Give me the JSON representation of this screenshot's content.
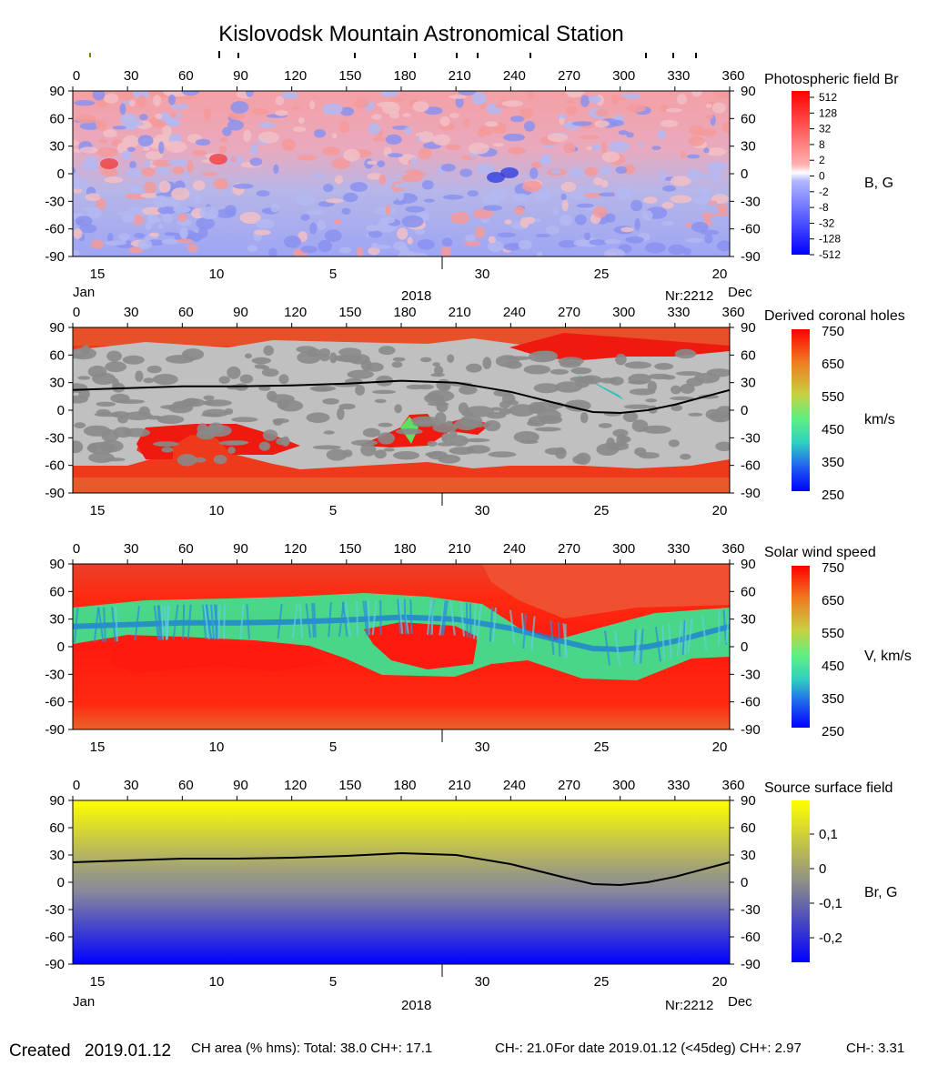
{
  "title": "Kislovodsk Mountain Astronomical Station",
  "colors": {
    "negative": "#0b1ee8",
    "positive": "#ee1b1b",
    "ch_gray_light": "#c0c0c0",
    "ch_gray_dark": "#8a8a8a",
    "neutral_line": "#000000",
    "ss_top": "#ffff00",
    "ss_mid": "#8f8f86",
    "ss_bottom": "#0000ff"
  },
  "top_longitude_ticks": [
    "0",
    "30",
    "60",
    "90",
    "120",
    "150",
    "180",
    "210",
    "240",
    "270",
    "300",
    "330",
    "360"
  ],
  "latitude_ticks": [
    "90",
    "60",
    "30",
    "0",
    "-30",
    "-60",
    "-90"
  ],
  "date_ticks": [
    "15",
    "10",
    "5",
    "30",
    "25",
    "20"
  ],
  "date_labels": {
    "left_month": "Jan",
    "right_month": "Dec",
    "year": "2018",
    "rotation": "Nr:2212"
  },
  "chart_data": [
    {
      "type": "heatmap",
      "title": "Photospheric field Br",
      "colorbar_label": "B, G",
      "colorbar_ticks": [
        "512",
        "128",
        "32",
        "8",
        "2",
        "0",
        "-2",
        "-8",
        "-32",
        "-128",
        "-512"
      ],
      "xlim": [
        0,
        360
      ],
      "ylim": [
        -90,
        90
      ],
      "x_ticks": [
        0,
        30,
        60,
        90,
        120,
        150,
        180,
        210,
        240,
        270,
        300,
        330,
        360
      ],
      "y_ticks": [
        90,
        60,
        30,
        0,
        -30,
        -60,
        -90
      ]
    },
    {
      "type": "heatmap",
      "title": "Derived coronal holes",
      "colorbar_label": "km/s",
      "colorbar_ticks": [
        "750",
        "650",
        "550",
        "450",
        "350",
        "250"
      ],
      "xlim": [
        0,
        360
      ],
      "ylim": [
        -90,
        90
      ],
      "neutral_line": {
        "x": [
          0,
          30,
          60,
          90,
          120,
          150,
          180,
          210,
          240,
          270,
          285,
          300,
          315,
          330,
          345,
          360
        ],
        "y": [
          22,
          24,
          26,
          26,
          27,
          29,
          32,
          30,
          20,
          5,
          -2,
          -3,
          0,
          6,
          14,
          22
        ]
      }
    },
    {
      "type": "heatmap",
      "title": "Solar wind speed",
      "colorbar_label": "V, km/s",
      "colorbar_ticks": [
        "750",
        "650",
        "550",
        "450",
        "350",
        "250"
      ],
      "xlim": [
        0,
        360
      ],
      "ylim": [
        -90,
        90
      ]
    },
    {
      "type": "heatmap",
      "title": "Source surface field",
      "colorbar_label": "Br, G",
      "colorbar_ticks": [
        "0,1",
        "0",
        "-0,1",
        "-0,2"
      ],
      "xlim": [
        0,
        360
      ],
      "ylim": [
        -90,
        90
      ],
      "neutral_line": {
        "x": [
          0,
          30,
          60,
          90,
          120,
          150,
          180,
          210,
          240,
          270,
          285,
          300,
          315,
          330,
          345,
          360
        ],
        "y": [
          22,
          24,
          26,
          26,
          27,
          29,
          32,
          30,
          20,
          5,
          -2,
          -3,
          0,
          6,
          14,
          22
        ]
      }
    }
  ],
  "footer": {
    "created_label": "Created",
    "created_date": "2019.01.12",
    "ch_area": "CH area (% hms): Total: 38.0 CH+: 17.1",
    "ch_minus": "CH-: 21.0",
    "for_date": "For date 2019.01.12 (<45deg) CH+: 2.97",
    "ch_minus_date": "CH-: 3.31"
  }
}
